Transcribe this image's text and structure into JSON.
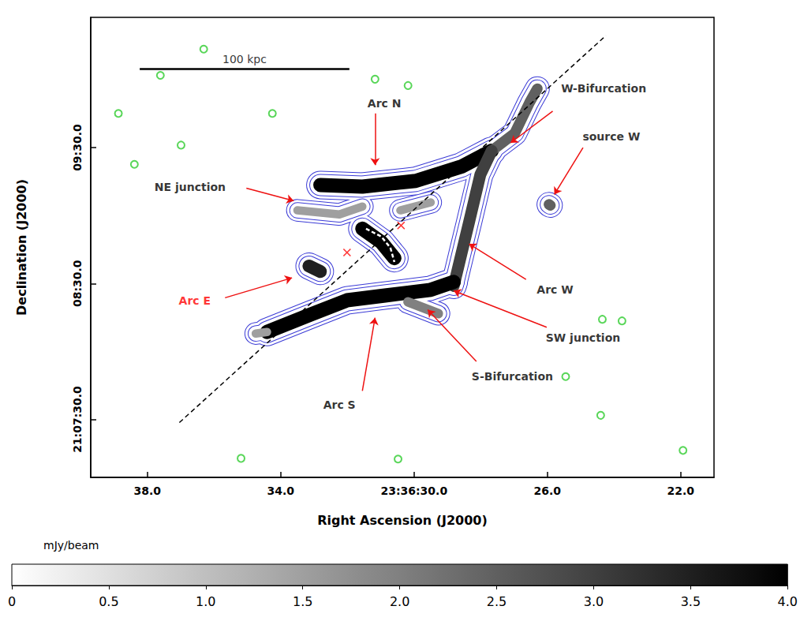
{
  "chart_data": {
    "type": "contour_map",
    "x_label": "Right Ascension (J2000)",
    "y_label": "Declination (J2000)",
    "xlim": [
      39.7,
      21.0
    ],
    "ylim": [
      424.4,
      627.5
    ],
    "xticks": [
      {
        "value": 38,
        "label": "38.0"
      },
      {
        "value": 34,
        "label": "34.0"
      },
      {
        "value": 30,
        "label": "23:36:30.0"
      },
      {
        "value": 26,
        "label": "26.0"
      },
      {
        "value": 22,
        "label": "22.0"
      }
    ],
    "yticks": [
      {
        "value": 450,
        "label": "21:07:30.0"
      },
      {
        "value": 510,
        "label": "08:30.0"
      },
      {
        "value": 570,
        "label": "09:30.0"
      }
    ],
    "colorbar": {
      "label": "mJy/beam",
      "range": [
        0,
        4
      ],
      "ticks": [
        0,
        0.5,
        {
          "value": 1,
          "label": "1.0"
        },
        1.5,
        {
          "value": 2,
          "label": "2.0"
        },
        2.5,
        {
          "value": 3,
          "label": "3.0"
        },
        3.5,
        {
          "value": 4,
          "label": "4.0"
        }
      ]
    },
    "emission": [
      {
        "peak": 4.0,
        "points": [
          [
            32.81,
            553.5
          ],
          [
            31.55,
            552.8
          ],
          [
            29.95,
            555.3
          ],
          [
            28.58,
            561.6
          ],
          [
            27.67,
            568.6
          ]
        ]
      },
      {
        "peak": 2.5,
        "points": [
          [
            27.67,
            568.6
          ],
          [
            26.98,
            576.3
          ],
          [
            26.53,
            590.0
          ],
          [
            26.3,
            596.0
          ]
        ]
      },
      {
        "peak": 3.0,
        "points": [
          [
            28.81,
            508.9
          ],
          [
            28.58,
            523.0
          ],
          [
            28.35,
            537.0
          ],
          [
            28.01,
            558.1
          ],
          [
            27.67,
            568.6
          ]
        ]
      },
      {
        "peak": 4.0,
        "points": [
          [
            34.41,
            488.6
          ],
          [
            33.15,
            496.0
          ],
          [
            32.01,
            502.6
          ],
          [
            30.87,
            504.7
          ],
          [
            29.5,
            507.2
          ],
          [
            28.81,
            510.7
          ]
        ]
      },
      {
        "peak": 3.5,
        "points": [
          [
            33.15,
            517.7
          ],
          [
            32.81,
            515.3
          ]
        ]
      },
      {
        "peak": 4.0,
        "points": [
          [
            31.55,
            534.2
          ],
          [
            30.98,
            528.2
          ],
          [
            30.59,
            521.2
          ]
        ]
      },
      {
        "peak": 1.5,
        "points": [
          [
            33.5,
            542.3
          ],
          [
            32.24,
            540.5
          ],
          [
            31.55,
            544.0
          ]
        ]
      },
      {
        "peak": 2.0,
        "points": [
          [
            30.18,
            501.9
          ],
          [
            29.27,
            496.7
          ]
        ]
      },
      {
        "peak": 1.5,
        "points": [
          [
            30.41,
            542.3
          ],
          [
            29.5,
            545.8
          ]
        ]
      },
      {
        "peak": 1.5,
        "points": [
          [
            34.41,
            488.6
          ],
          [
            34.75,
            487.9
          ]
        ]
      },
      {
        "peak": 2.5,
        "points": [
          [
            25.95,
            544.9
          ],
          [
            25.91,
            544.5
          ]
        ]
      }
    ],
    "negative_contours": [
      [
        38.87,
        585.1
      ],
      [
        37.61,
        601.9
      ],
      [
        36.31,
        613.5
      ],
      [
        36.99,
        571.1
      ],
      [
        34.25,
        585.1
      ],
      [
        31.17,
        600.2
      ],
      [
        30.18,
        597.4
      ],
      [
        38.39,
        562.6
      ],
      [
        24.35,
        494.2
      ],
      [
        23.76,
        493.5
      ],
      [
        25.45,
        468.9
      ],
      [
        24.4,
        451.8
      ],
      [
        30.48,
        432.5
      ],
      [
        35.19,
        432.8
      ],
      [
        21.93,
        436.3
      ]
    ],
    "markers": {
      "marker": "x",
      "color": "red",
      "points": [
        [
          32.01,
          523.7
        ],
        [
          30.39,
          535.6
        ]
      ]
    },
    "dashed_axis": {
      "color": "black",
      "points": [
        [
          37.04,
          448.6
        ],
        [
          24.24,
          619.5
        ]
      ]
    },
    "dashed_curve": {
      "color": "white",
      "points": [
        [
          31.44,
          534.2
        ],
        [
          30.98,
          530.7
        ],
        [
          30.71,
          525.8
        ],
        [
          30.59,
          519.5
        ]
      ]
    },
    "scale_bar": {
      "label": "100 kpc",
      "from": [
        38.23,
        604.7
      ],
      "to": [
        31.94,
        604.7
      ]
    },
    "annotations": [
      {
        "text": "Arc N",
        "color": "black",
        "at": [
          30.89,
          589.6
        ],
        "arrow_from": [
          31.17,
          585.1
        ],
        "arrow_to": [
          31.17,
          562.3
        ]
      },
      {
        "text": "W-Bifurcation",
        "color": "black",
        "at": [
          24.31,
          596.0
        ],
        "arrow_from": [
          25.84,
          586.1
        ],
        "arrow_to": [
          27.1,
          572.1
        ]
      },
      {
        "text": "source W",
        "color": "black",
        "at": [
          24.08,
          574.9
        ],
        "arrow_from": [
          24.93,
          570.0
        ],
        "arrow_to": [
          25.79,
          549.3
        ]
      },
      {
        "text": "NE junction",
        "color": "black",
        "at": [
          36.72,
          552.5
        ],
        "arrow_from": [
          35.03,
          552.1
        ],
        "arrow_to": [
          33.61,
          546.5
        ]
      },
      {
        "text": "Arc E",
        "color": "red",
        "at": [
          36.58,
          502.6
        ],
        "arrow_from": [
          35.67,
          503.7
        ],
        "arrow_to": [
          33.66,
          512.5
        ]
      },
      {
        "text": "Arc W",
        "color": "black",
        "at": [
          25.77,
          507.2
        ],
        "arrow_from": [
          26.64,
          511.8
        ],
        "arrow_to": [
          28.35,
          527.5
        ]
      },
      {
        "text": "SW junction",
        "color": "black",
        "at": [
          24.93,
          486.1
        ],
        "arrow_from": [
          26.02,
          490.7
        ],
        "arrow_to": [
          28.81,
          506.8
        ]
      },
      {
        "text": "S-Bifurcation",
        "color": "black",
        "at": [
          27.05,
          468.9
        ],
        "arrow_from": [
          28.13,
          475.6
        ],
        "arrow_to": [
          29.59,
          498.4
        ]
      },
      {
        "text": "Arc S",
        "color": "black",
        "at": [
          32.24,
          456.3
        ],
        "arrow_from": [
          31.55,
          462.6
        ],
        "arrow_to": [
          31.17,
          494.9
        ]
      }
    ]
  }
}
